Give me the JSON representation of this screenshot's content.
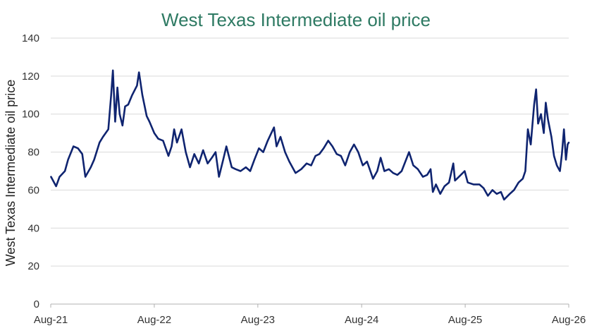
{
  "colors": {
    "title": "#2e7a63",
    "series": "#0f2470",
    "grid": "#d9d9d9",
    "axis": "#b0b0b0"
  },
  "chart_data": {
    "type": "line",
    "title": "West Texas Intermediate oil price",
    "xlabel": "",
    "ylabel": "West Texas Intermediate oil price",
    "ylim": [
      0,
      140
    ],
    "yticks": [
      0,
      20,
      40,
      60,
      80,
      100,
      120,
      140
    ],
    "xlim": [
      "2021-08-01",
      "2026-08-01"
    ],
    "xticks": [
      {
        "date": "2021-08-01",
        "label": "Aug-21"
      },
      {
        "date": "2022-08-01",
        "label": "Aug-22"
      },
      {
        "date": "2023-08-01",
        "label": "Aug-23"
      },
      {
        "date": "2024-08-01",
        "label": "Aug-24"
      },
      {
        "date": "2025-08-01",
        "label": "Aug-25"
      },
      {
        "date": "2026-08-01",
        "label": "Aug-26"
      }
    ],
    "grid": true,
    "legend": "none",
    "series": [
      {
        "name": "",
        "points": [
          [
            "2021-08-02",
            67
          ],
          [
            "2021-08-20",
            62
          ],
          [
            "2021-09-01",
            67
          ],
          [
            "2021-09-20",
            70
          ],
          [
            "2021-10-01",
            76
          ],
          [
            "2021-10-20",
            83
          ],
          [
            "2021-11-05",
            82
          ],
          [
            "2021-11-20",
            79
          ],
          [
            "2021-12-01",
            67
          ],
          [
            "2021-12-20",
            72
          ],
          [
            "2022-01-01",
            76
          ],
          [
            "2022-01-20",
            85
          ],
          [
            "2022-02-01",
            88
          ],
          [
            "2022-02-20",
            92
          ],
          [
            "2022-03-02",
            110
          ],
          [
            "2022-03-08",
            123
          ],
          [
            "2022-03-16",
            96
          ],
          [
            "2022-03-24",
            114
          ],
          [
            "2022-04-01",
            100
          ],
          [
            "2022-04-11",
            94
          ],
          [
            "2022-04-20",
            104
          ],
          [
            "2022-05-01",
            105
          ],
          [
            "2022-05-15",
            110
          ],
          [
            "2022-06-01",
            115
          ],
          [
            "2022-06-08",
            122
          ],
          [
            "2022-06-20",
            110
          ],
          [
            "2022-07-05",
            99
          ],
          [
            "2022-07-15",
            96
          ],
          [
            "2022-08-01",
            90
          ],
          [
            "2022-08-15",
            87
          ],
          [
            "2022-09-01",
            86
          ],
          [
            "2022-09-20",
            78
          ],
          [
            "2022-10-01",
            83
          ],
          [
            "2022-10-10",
            92
          ],
          [
            "2022-10-20",
            85
          ],
          [
            "2022-11-05",
            92
          ],
          [
            "2022-11-20",
            80
          ],
          [
            "2022-12-05",
            72
          ],
          [
            "2022-12-20",
            79
          ],
          [
            "2023-01-05",
            74
          ],
          [
            "2023-01-20",
            81
          ],
          [
            "2023-02-05",
            74
          ],
          [
            "2023-02-20",
            77
          ],
          [
            "2023-03-05",
            80
          ],
          [
            "2023-03-17",
            67
          ],
          [
            "2023-04-01",
            76
          ],
          [
            "2023-04-12",
            83
          ],
          [
            "2023-05-01",
            72
          ],
          [
            "2023-05-15",
            71
          ],
          [
            "2023-06-01",
            70
          ],
          [
            "2023-06-20",
            72
          ],
          [
            "2023-07-05",
            70
          ],
          [
            "2023-07-20",
            76
          ],
          [
            "2023-08-05",
            82
          ],
          [
            "2023-08-20",
            80
          ],
          [
            "2023-09-05",
            86
          ],
          [
            "2023-09-27",
            93
          ],
          [
            "2023-10-06",
            83
          ],
          [
            "2023-10-20",
            88
          ],
          [
            "2023-11-05",
            80
          ],
          [
            "2023-11-20",
            75
          ],
          [
            "2023-12-12",
            69
          ],
          [
            "2024-01-01",
            71
          ],
          [
            "2024-01-20",
            74
          ],
          [
            "2024-02-05",
            73
          ],
          [
            "2024-02-20",
            78
          ],
          [
            "2024-03-05",
            79
          ],
          [
            "2024-03-20",
            82
          ],
          [
            "2024-04-05",
            86
          ],
          [
            "2024-04-20",
            83
          ],
          [
            "2024-05-05",
            79
          ],
          [
            "2024-05-20",
            78
          ],
          [
            "2024-06-04",
            73
          ],
          [
            "2024-06-20",
            80
          ],
          [
            "2024-07-05",
            84
          ],
          [
            "2024-07-20",
            80
          ],
          [
            "2024-08-05",
            73
          ],
          [
            "2024-08-20",
            75
          ],
          [
            "2024-09-10",
            66
          ],
          [
            "2024-09-25",
            70
          ],
          [
            "2024-10-07",
            77
          ],
          [
            "2024-10-20",
            70
          ],
          [
            "2024-11-05",
            71
          ],
          [
            "2024-11-20",
            69
          ],
          [
            "2024-12-05",
            68
          ],
          [
            "2024-12-20",
            70
          ],
          [
            "2025-01-15",
            80
          ],
          [
            "2025-01-30",
            73
          ],
          [
            "2025-02-15",
            71
          ],
          [
            "2025-03-05",
            67
          ],
          [
            "2025-03-20",
            68
          ],
          [
            "2025-04-01",
            71
          ],
          [
            "2025-04-09",
            59
          ],
          [
            "2025-04-20",
            63
          ],
          [
            "2025-05-05",
            58
          ],
          [
            "2025-05-20",
            62
          ],
          [
            "2025-06-05",
            64
          ],
          [
            "2025-06-20",
            74
          ],
          [
            "2025-06-26",
            65
          ],
          [
            "2025-07-10",
            67
          ],
          [
            "2025-07-30",
            70
          ],
          [
            "2025-08-10",
            64
          ],
          [
            "2025-08-30",
            63
          ],
          [
            "2025-09-20",
            63
          ],
          [
            "2025-10-05",
            61
          ],
          [
            "2025-10-20",
            57
          ],
          [
            "2025-11-05",
            60
          ],
          [
            "2025-11-20",
            58
          ],
          [
            "2025-12-05",
            59
          ],
          [
            "2025-12-16",
            55
          ],
          [
            "2026-01-05",
            58
          ],
          [
            "2026-01-20",
            60
          ],
          [
            "2026-02-05",
            64
          ],
          [
            "2026-02-20",
            66
          ],
          [
            "2026-03-01",
            70
          ],
          [
            "2026-03-10",
            92
          ],
          [
            "2026-03-20",
            84
          ],
          [
            "2026-04-01",
            105
          ],
          [
            "2026-04-08",
            113
          ],
          [
            "2026-04-15",
            95
          ],
          [
            "2026-04-25",
            100
          ],
          [
            "2026-05-05",
            90
          ],
          [
            "2026-05-12",
            106
          ],
          [
            "2026-05-20",
            97
          ],
          [
            "2026-06-01",
            88
          ],
          [
            "2026-06-10",
            78
          ],
          [
            "2026-06-20",
            73
          ],
          [
            "2026-07-01",
            70
          ],
          [
            "2026-07-08",
            79
          ],
          [
            "2026-07-15",
            92
          ],
          [
            "2026-07-22",
            76
          ],
          [
            "2026-07-28",
            84
          ],
          [
            "2026-08-01",
            85
          ]
        ]
      }
    ]
  }
}
